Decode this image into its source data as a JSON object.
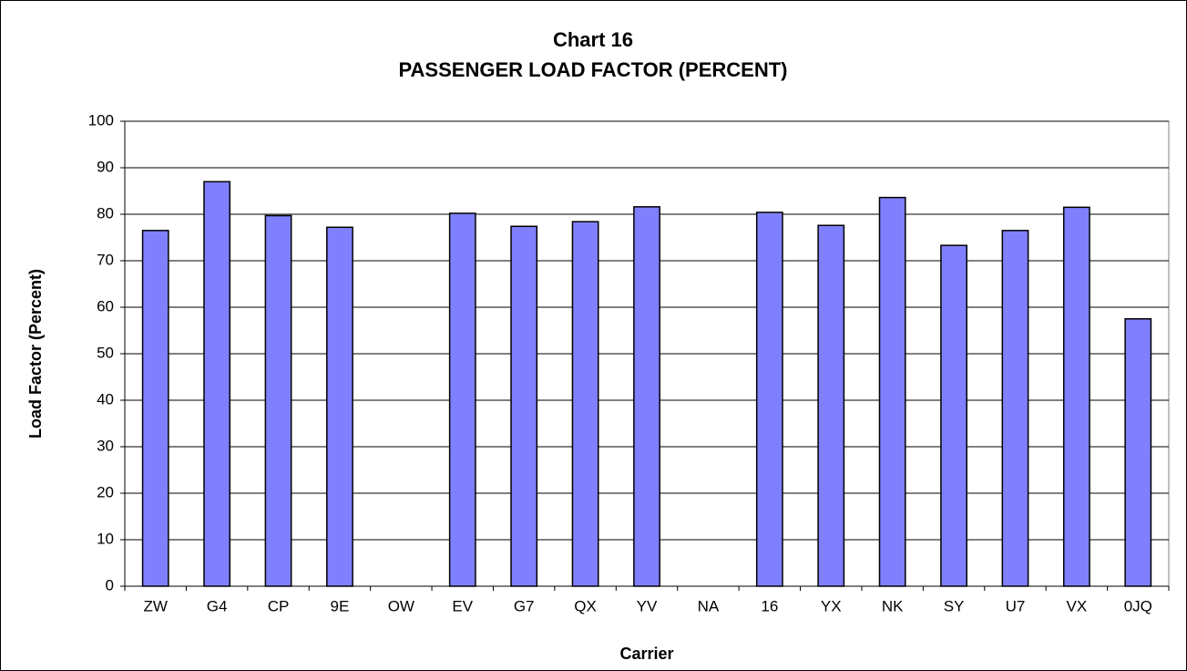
{
  "chart_data": {
    "type": "bar",
    "title": "Chart 16",
    "subtitle": "PASSENGER LOAD FACTOR (PERCENT)",
    "x_label": "Carrier",
    "y_label": "Load Factor (Percent)",
    "categories": [
      "ZW",
      "G4",
      "CP",
      "9E",
      "OW",
      "EV",
      "G7",
      "QX",
      "YV",
      "NA",
      "16",
      "YX",
      "NK",
      "SY",
      "U7",
      "VX",
      "0JQ"
    ],
    "values": [
      76.5,
      87,
      79.7,
      77.2,
      null,
      80.2,
      77.4,
      78.4,
      81.6,
      null,
      80.4,
      77.6,
      83.6,
      73.3,
      76.5,
      81.5,
      57.5
    ],
    "color": "#8080ff",
    "ylim": [
      0,
      100
    ],
    "yticks": [
      0,
      10,
      20,
      30,
      40,
      50,
      60,
      70,
      80,
      90,
      100
    ],
    "grid": true
  }
}
